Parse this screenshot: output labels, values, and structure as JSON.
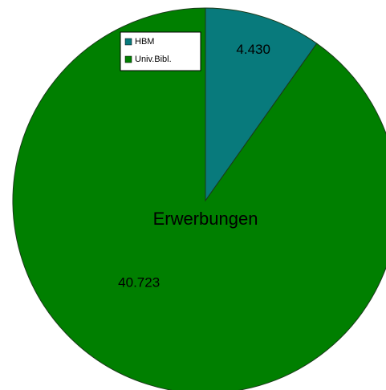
{
  "chart_data": {
    "type": "pie",
    "title": "Erwerbungen",
    "categories": [
      "HBM",
      "Univ.Bibl."
    ],
    "values": [
      4430,
      40723
    ],
    "value_labels": [
      "4.430",
      "40.723"
    ],
    "colors": [
      "#087a7c",
      "#007f00"
    ],
    "legend": "top-left"
  }
}
